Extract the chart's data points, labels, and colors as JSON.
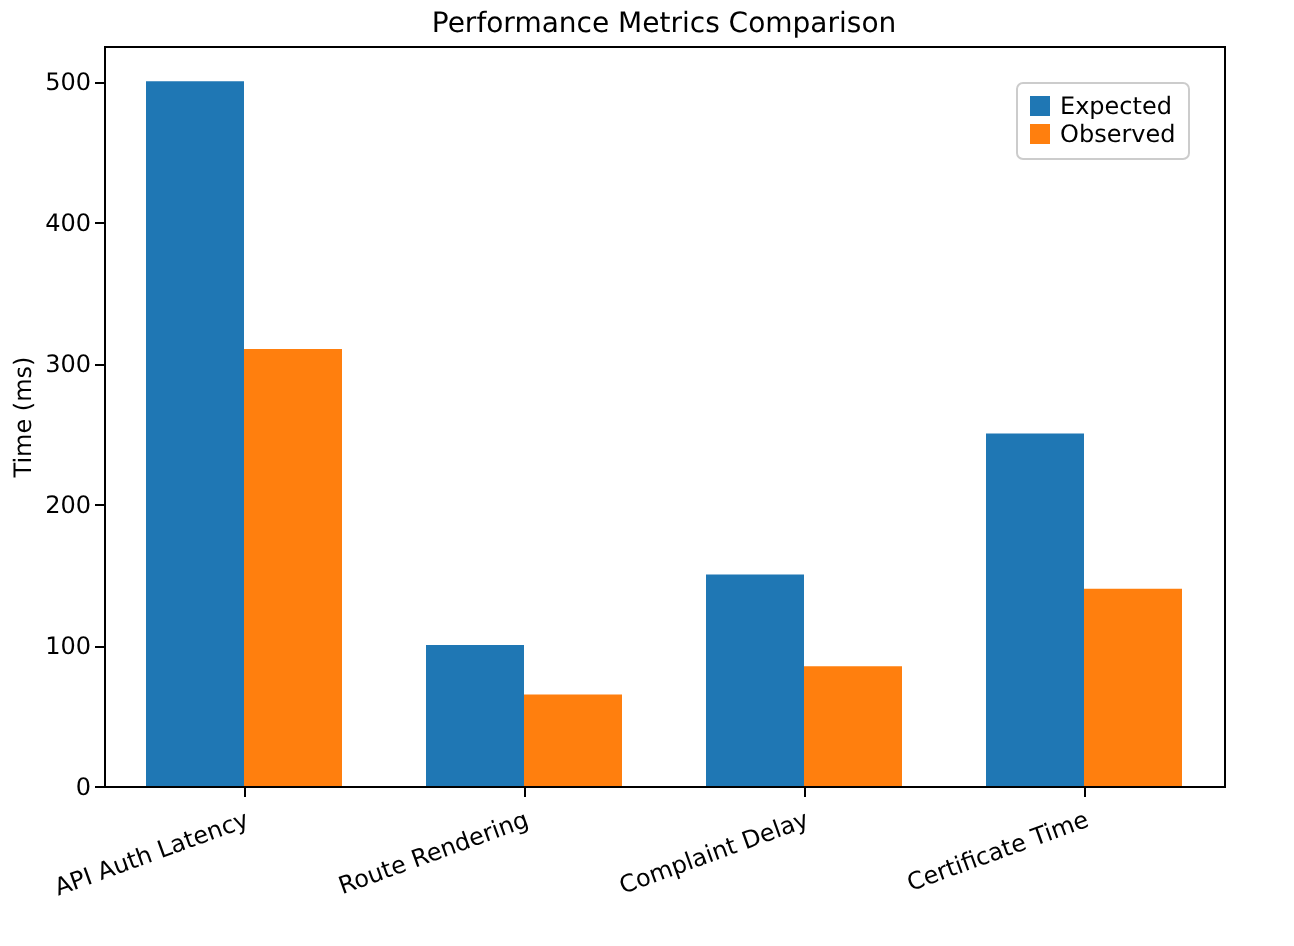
{
  "chart_data": {
    "type": "bar",
    "title": "Performance Metrics Comparison",
    "ylabel": "Time (ms)",
    "categories": [
      "API Auth Latency",
      "Route Rendering",
      "Complaint Delay",
      "Certificate Time"
    ],
    "series": [
      {
        "name": "Expected",
        "color": "#1f77b4",
        "values": [
          500,
          100,
          150,
          250
        ]
      },
      {
        "name": "Observed",
        "color": "#ff7f0e",
        "values": [
          310,
          65,
          85,
          140
        ]
      }
    ],
    "ylim": [
      0,
      525
    ],
    "yticks": [
      0,
      100,
      200,
      300,
      400,
      500
    ],
    "grid": false,
    "legend": "top right"
  }
}
